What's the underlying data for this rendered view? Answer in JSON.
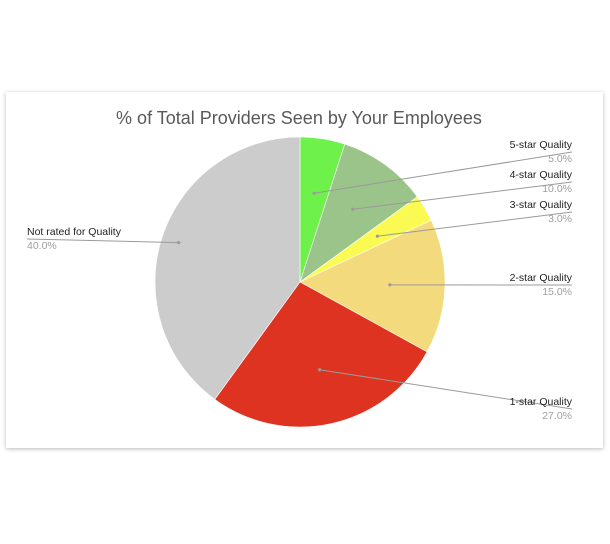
{
  "chart_data": {
    "type": "pie",
    "title": "% of Total Providers Seen by Your Employees",
    "slices": [
      {
        "label": "5-star Quality",
        "value": 5.0,
        "display": "5.0%",
        "color": "#6ef14a"
      },
      {
        "label": "4-star Quality",
        "value": 10.0,
        "display": "10.0%",
        "color": "#9bc48b"
      },
      {
        "label": "3-star Quality",
        "value": 3.0,
        "display": "3.0%",
        "color": "#fafa52"
      },
      {
        "label": "2-star Quality",
        "value": 15.0,
        "display": "15.0%",
        "color": "#f3da7d"
      },
      {
        "label": "1-star Quality",
        "value": 27.0,
        "display": "27.0%",
        "color": "#de3321"
      },
      {
        "label": "Not rated for Quality",
        "value": 40.0,
        "display": "40.0%",
        "color": "#cccccc"
      }
    ],
    "legend": "none"
  }
}
